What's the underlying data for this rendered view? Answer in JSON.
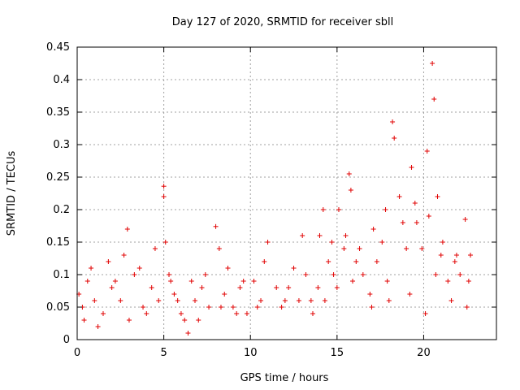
{
  "chart_data": {
    "type": "scatter",
    "title": "Day 127 of 2020, SRMTID for receiver sbll",
    "xlabel": "GPS time / hours",
    "ylabel": "SRMTID / TECUs",
    "xlim": [
      0,
      24.2
    ],
    "ylim": [
      0,
      0.45
    ],
    "xticks": [
      0,
      5,
      10,
      15,
      20
    ],
    "xtick_labels": [
      "0",
      "5",
      "10",
      "15",
      "20"
    ],
    "yticks": [
      0,
      0.05,
      0.1,
      0.15,
      0.2,
      0.25,
      0.3,
      0.35,
      0.4,
      0.45
    ],
    "ytick_labels": [
      "0",
      "0.05",
      "0.1",
      "0.15",
      "0.2",
      "0.25",
      "0.3",
      "0.35",
      "0.4",
      "0.45"
    ],
    "grid": true,
    "marker": "+",
    "color": "#e00000",
    "series": [
      {
        "name": "SRMTID",
        "x": [
          0.1,
          0.3,
          0.6,
          1.0,
          1.5,
          2.0,
          2.5,
          2.9,
          3.3,
          3.8,
          4.3,
          4.7,
          5.0,
          5.0,
          5.1,
          5.3,
          5.6,
          6.0,
          6.4,
          6.8,
          7.2,
          7.6,
          8.0,
          8.2,
          8.5,
          9.0,
          9.4,
          9.8,
          10.2,
          10.6,
          11.0,
          11.5,
          12.0,
          12.5,
          13.0,
          13.5,
          13.9,
          14.2,
          14.5,
          14.8,
          15.1,
          15.4,
          15.7,
          15.8,
          16.1,
          16.5,
          16.9,
          17.3,
          17.6,
          17.9,
          18.2,
          18.3,
          18.6,
          19.0,
          19.3,
          19.6,
          19.9,
          20.2,
          20.5,
          20.6,
          20.8,
          21.1,
          21.4,
          21.8,
          22.1,
          22.4,
          22.7,
          0.4,
          1.2,
          2.2,
          3.0,
          4.0,
          5.4,
          6.2,
          7.0,
          8.3,
          9.2,
          10.4,
          11.8,
          12.8,
          13.6,
          14.3,
          15.0,
          15.9,
          17.0,
          18.0,
          19.2,
          20.1,
          20.7,
          21.6,
          22.5,
          0.8,
          1.8,
          2.7,
          3.6,
          4.5,
          5.8,
          6.6,
          7.4,
          8.7,
          9.6,
          10.8,
          12.2,
          13.2,
          14.0,
          14.7,
          15.5,
          16.3,
          17.1,
          17.8,
          18.8,
          19.5,
          20.3,
          21.0,
          21.9,
          22.6
        ],
        "y": [
          0.07,
          0.05,
          0.09,
          0.06,
          0.04,
          0.08,
          0.06,
          0.17,
          0.1,
          0.05,
          0.08,
          0.06,
          0.236,
          0.22,
          0.15,
          0.1,
          0.07,
          0.04,
          0.01,
          0.06,
          0.08,
          0.05,
          0.174,
          0.14,
          0.07,
          0.05,
          0.08,
          0.04,
          0.09,
          0.06,
          0.15,
          0.08,
          0.06,
          0.11,
          0.16,
          0.06,
          0.08,
          0.2,
          0.12,
          0.1,
          0.2,
          0.14,
          0.255,
          0.23,
          0.12,
          0.1,
          0.07,
          0.12,
          0.15,
          0.09,
          0.335,
          0.31,
          0.22,
          0.14,
          0.265,
          0.18,
          0.14,
          0.29,
          0.425,
          0.37,
          0.22,
          0.15,
          0.09,
          0.12,
          0.1,
          0.185,
          0.13,
          0.03,
          0.02,
          0.09,
          0.03,
          0.04,
          0.09,
          0.03,
          0.03,
          0.05,
          0.04,
          0.05,
          0.05,
          0.06,
          0.04,
          0.06,
          0.08,
          0.09,
          0.05,
          0.06,
          0.07,
          0.04,
          0.1,
          0.06,
          0.05,
          0.11,
          0.12,
          0.13,
          0.11,
          0.14,
          0.06,
          0.09,
          0.1,
          0.11,
          0.09,
          0.12,
          0.08,
          0.1,
          0.16,
          0.15,
          0.16,
          0.14,
          0.17,
          0.2,
          0.18,
          0.21,
          0.19,
          0.13,
          0.13,
          0.09
        ]
      }
    ]
  }
}
